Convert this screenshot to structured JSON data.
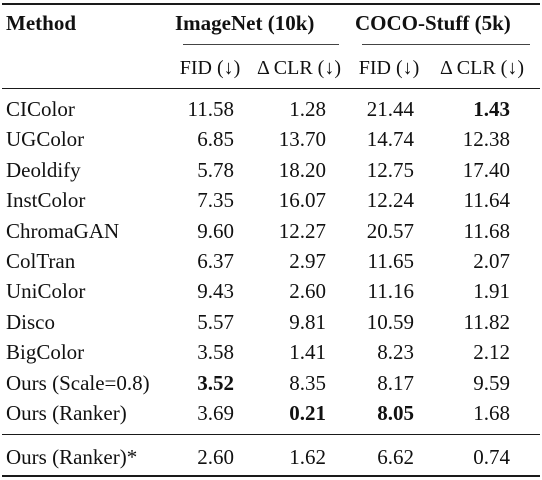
{
  "header": {
    "method": "Method",
    "groups": [
      "ImageNet (10k)",
      "COCO-Stuff (5k)"
    ],
    "subheaders": [
      "FID (↓)",
      "Δ CLR (↓)",
      "FID (↓)",
      "Δ CLR (↓)"
    ]
  },
  "rows": [
    {
      "method": "CIColor",
      "values": [
        "11.58",
        "1.28",
        "21.44",
        "1.43"
      ],
      "bold": [
        false,
        false,
        false,
        true
      ]
    },
    {
      "method": "UGColor",
      "values": [
        "6.85",
        "13.70",
        "14.74",
        "12.38"
      ],
      "bold": [
        false,
        false,
        false,
        false
      ]
    },
    {
      "method": "Deoldify",
      "values": [
        "5.78",
        "18.20",
        "12.75",
        "17.40"
      ],
      "bold": [
        false,
        false,
        false,
        false
      ]
    },
    {
      "method": "InstColor",
      "values": [
        "7.35",
        "16.07",
        "12.24",
        "11.64"
      ],
      "bold": [
        false,
        false,
        false,
        false
      ]
    },
    {
      "method": "ChromaGAN",
      "values": [
        "9.60",
        "12.27",
        "20.57",
        "11.68"
      ],
      "bold": [
        false,
        false,
        false,
        false
      ]
    },
    {
      "method": "ColTran",
      "values": [
        "6.37",
        "2.97",
        "11.65",
        "2.07"
      ],
      "bold": [
        false,
        false,
        false,
        false
      ]
    },
    {
      "method": "UniColor",
      "values": [
        "9.43",
        "2.60",
        "11.16",
        "1.91"
      ],
      "bold": [
        false,
        false,
        false,
        false
      ]
    },
    {
      "method": "Disco",
      "values": [
        "5.57",
        "9.81",
        "10.59",
        "11.82"
      ],
      "bold": [
        false,
        false,
        false,
        false
      ]
    },
    {
      "method": "BigColor",
      "values": [
        "3.58",
        "1.41",
        "8.23",
        "2.12"
      ],
      "bold": [
        false,
        false,
        false,
        false
      ]
    },
    {
      "method": "Ours (Scale=0.8)",
      "values": [
        "3.52",
        "8.35",
        "8.17",
        "9.59"
      ],
      "bold": [
        true,
        false,
        false,
        false
      ]
    },
    {
      "method": "Ours (Ranker)",
      "values": [
        "3.69",
        "0.21",
        "8.05",
        "1.68"
      ],
      "bold": [
        false,
        true,
        true,
        false
      ]
    }
  ],
  "footer_row": {
    "method": "Ours (Ranker)*",
    "values": [
      "2.60",
      "1.62",
      "6.62",
      "0.74"
    ]
  }
}
